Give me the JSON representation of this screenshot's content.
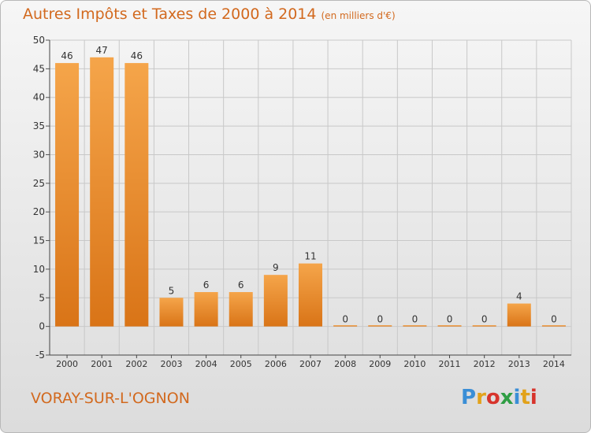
{
  "header": {
    "title": "Autres Impôts et Taxes de 2000 à 2014",
    "subtitle": "(en milliers d'€)"
  },
  "footer": {
    "commune": "VORAY-SUR-L'OGNON",
    "logo_text": "Proxiti"
  },
  "colors": {
    "bar_top": "#f5a54a",
    "bar_bottom": "#d97417",
    "title": "#d2691e",
    "grid": "#c8c8c8"
  },
  "chart_data": {
    "type": "bar",
    "categories": [
      "2000",
      "2001",
      "2002",
      "2003",
      "2004",
      "2005",
      "2006",
      "2007",
      "2008",
      "2009",
      "2010",
      "2011",
      "2012",
      "2013",
      "2014"
    ],
    "values": [
      46,
      47,
      46,
      5,
      6,
      6,
      9,
      11,
      0,
      0,
      0,
      0,
      0,
      4,
      0
    ],
    "data_labels": [
      "46",
      "47",
      "46",
      "5",
      "6",
      "6",
      "9",
      "11",
      "0",
      "0",
      "0",
      "0",
      "0",
      "4",
      "0"
    ],
    "ylim": [
      -5,
      50
    ],
    "yticks": [
      -5,
      0,
      5,
      10,
      15,
      20,
      25,
      30,
      35,
      40,
      45,
      50
    ],
    "grid": true
  }
}
